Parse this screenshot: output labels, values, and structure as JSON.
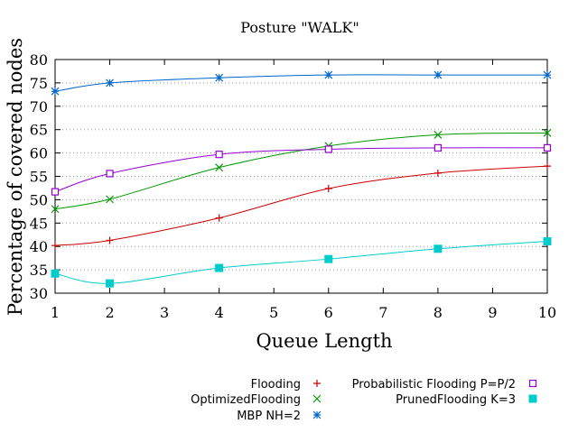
{
  "chart_data": {
    "type": "line",
    "title": "Posture \"WALK\"",
    "xlabel": "Queue Length",
    "ylabel": "Percentage of covered nodes",
    "xlim": [
      1,
      10
    ],
    "ylim": [
      30,
      80
    ],
    "xticks": [
      1,
      2,
      3,
      4,
      5,
      6,
      7,
      8,
      9,
      10
    ],
    "yticks": [
      30,
      35,
      40,
      45,
      50,
      55,
      60,
      65,
      70,
      75,
      80
    ],
    "grid": "horizontal dotted",
    "legend_position": "bottom-right",
    "series": [
      {
        "name": "Flooding",
        "color": "#cc0000",
        "marker": "plus",
        "x": [
          1,
          2,
          4,
          6,
          8,
          10
        ],
        "values": [
          40.2,
          41.3,
          46.1,
          52.4,
          55.7,
          57.2
        ]
      },
      {
        "name": "OptimizedFlooding",
        "color": "#009900",
        "marker": "x",
        "x": [
          1,
          2,
          4,
          6,
          8,
          10
        ],
        "values": [
          48.0,
          50.1,
          56.9,
          61.5,
          63.9,
          64.3
        ]
      },
      {
        "name": "MBP NH=2",
        "color": "#0066cc",
        "marker": "star",
        "x": [
          1,
          2,
          4,
          6,
          8,
          10
        ],
        "values": [
          73.2,
          75.0,
          76.1,
          76.7,
          76.7,
          76.7
        ]
      },
      {
        "name": "Probabilistic Flooding P=P/2",
        "color": "#9400d3",
        "marker": "open-square",
        "x": [
          1,
          2,
          4,
          6,
          8,
          10
        ],
        "values": [
          51.7,
          55.6,
          59.7,
          60.8,
          61.1,
          61.1
        ]
      },
      {
        "name": "PrunedFlooding K=3",
        "color": "#00cccc",
        "marker": "filled-square",
        "x": [
          1,
          2,
          4,
          6,
          8,
          10
        ],
        "values": [
          34.2,
          32.1,
          35.4,
          37.3,
          39.5,
          41.1
        ]
      }
    ]
  }
}
